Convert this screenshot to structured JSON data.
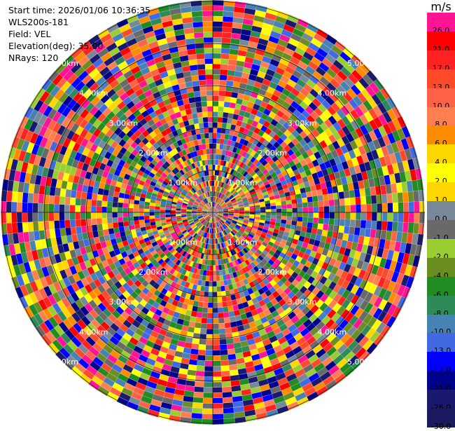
{
  "header": {
    "start_time": "Start time: 2026/01/06 10:36:35",
    "instrument": "WLS200s-181",
    "field": "Field: VEL",
    "elevation": "Elevation(deg): 35.00",
    "nrays": "NRays: 120"
  },
  "colorbar": {
    "unit": "m/s",
    "levels": [
      {
        "label": "26.0",
        "color": "#ff1493"
      },
      {
        "label": "21.0",
        "color": "#ff0000"
      },
      {
        "label": "17.0",
        "color": "#ff2222"
      },
      {
        "label": "13.0",
        "color": "#ff4a2a"
      },
      {
        "label": "10.0",
        "color": "#ff6347"
      },
      {
        "label": "8.0",
        "color": "#ff7f50"
      },
      {
        "label": "6.0",
        "color": "#ff8c00"
      },
      {
        "label": "4.0",
        "color": "#ffd700"
      },
      {
        "label": "2.0",
        "color": "#ffff00"
      },
      {
        "label": "1.0",
        "color": "#ffd700"
      },
      {
        "label": "0.0",
        "color": "#778899"
      },
      {
        "label": "-1.0",
        "color": "#696969"
      },
      {
        "label": "-2.0",
        "color": "#9acd32"
      },
      {
        "label": "-4.0",
        "color": "#6b8e23"
      },
      {
        "label": "-6.0",
        "color": "#228b22"
      },
      {
        "label": "-8.0",
        "color": "#2e8b57"
      },
      {
        "label": "-10.0",
        "color": "#4682b4"
      },
      {
        "label": "-13.0",
        "color": "#4169e1"
      },
      {
        "label": "-17.0",
        "color": "#0000ff"
      },
      {
        "label": "-21.0",
        "color": "#00008b"
      },
      {
        "label": "-26.0",
        "color": "#191970"
      },
      {
        "label": "-30.0",
        "color": "#1a1a5e"
      }
    ]
  },
  "chart_data": {
    "type": "heatmap",
    "projection": "polar-ppi",
    "field": "VEL",
    "nrays": 120,
    "range_ring_labels": [
      "1.00km",
      "2.00km",
      "3.00km",
      "4.00km",
      "5.00km"
    ],
    "ring_ranges_km": [
      1,
      2,
      3,
      4,
      5
    ],
    "max_range_km": 5.0,
    "gate_count": 40,
    "palette": [
      "#ff1493",
      "#ff0000",
      "#ff2222",
      "#ff4a2a",
      "#ff6347",
      "#ff7f50",
      "#ff8c00",
      "#ffd700",
      "#ffff00",
      "#778899",
      "#696969",
      "#9acd32",
      "#6b8e23",
      "#228b22",
      "#2e8b57",
      "#4682b4",
      "#4169e1",
      "#0000ff",
      "#00008b",
      "#191970"
    ]
  }
}
